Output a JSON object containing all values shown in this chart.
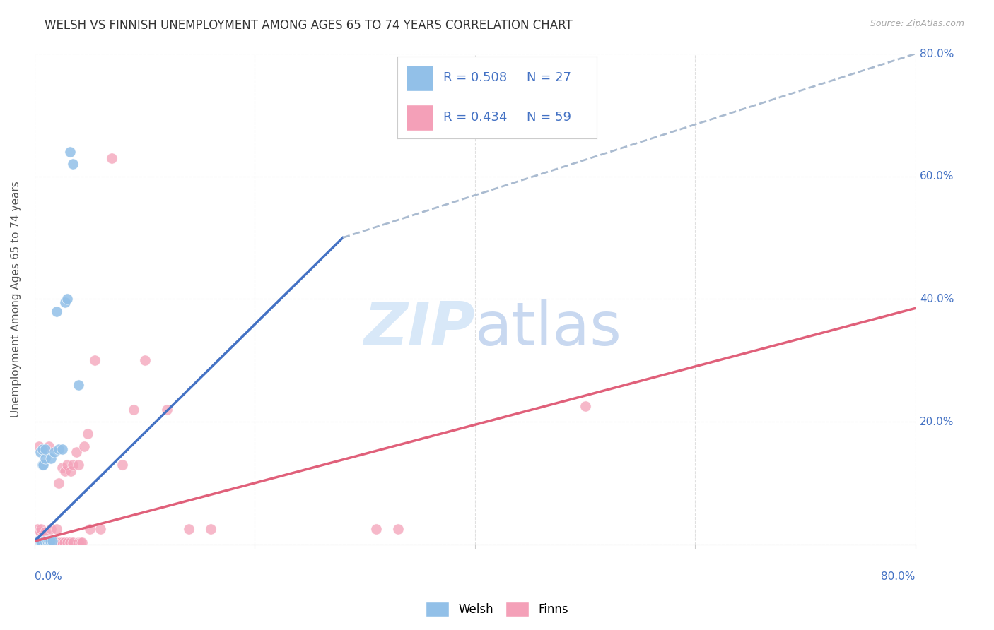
{
  "title": "WELSH VS FINNISH UNEMPLOYMENT AMONG AGES 65 TO 74 YEARS CORRELATION CHART",
  "source": "Source: ZipAtlas.com",
  "ylabel": "Unemployment Among Ages 65 to 74 years",
  "xlim": [
    0,
    0.8
  ],
  "ylim": [
    0,
    0.8
  ],
  "xticks": [
    0.0,
    0.2,
    0.4,
    0.6,
    0.8
  ],
  "yticks": [
    0.0,
    0.2,
    0.4,
    0.6,
    0.8
  ],
  "xticklabels_left": "0.0%",
  "xticklabels_right": "80.0%",
  "yticklabels": [
    "20.0%",
    "40.0%",
    "60.0%",
    "80.0%"
  ],
  "ytick_positions": [
    0.2,
    0.4,
    0.6,
    0.8
  ],
  "welsh_color": "#92C0E8",
  "finns_color": "#F4A0B8",
  "welsh_line_color": "#4472C4",
  "finns_line_color": "#E0607A",
  "dashed_line_color": "#AABBD0",
  "watermark_color": "#D8E8F8",
  "legend_text_color": "#4472C4",
  "welsh_R": 0.508,
  "welsh_N": 27,
  "finns_R": 0.434,
  "finns_N": 59,
  "welsh_scatter_x": [
    0.002,
    0.003,
    0.004,
    0.005,
    0.005,
    0.006,
    0.007,
    0.007,
    0.008,
    0.009,
    0.01,
    0.01,
    0.011,
    0.012,
    0.013,
    0.014,
    0.015,
    0.016,
    0.018,
    0.02,
    0.022,
    0.025,
    0.028,
    0.03,
    0.032,
    0.035,
    0.04
  ],
  "welsh_scatter_y": [
    0.003,
    0.005,
    0.005,
    0.004,
    0.15,
    0.004,
    0.13,
    0.155,
    0.13,
    0.005,
    0.14,
    0.155,
    0.005,
    0.005,
    0.005,
    0.005,
    0.14,
    0.005,
    0.15,
    0.38,
    0.155,
    0.155,
    0.395,
    0.4,
    0.64,
    0.62,
    0.26
  ],
  "finns_scatter_x": [
    0.001,
    0.002,
    0.003,
    0.003,
    0.004,
    0.004,
    0.005,
    0.005,
    0.005,
    0.006,
    0.006,
    0.007,
    0.007,
    0.008,
    0.008,
    0.009,
    0.01,
    0.01,
    0.011,
    0.012,
    0.013,
    0.015,
    0.015,
    0.016,
    0.018,
    0.02,
    0.02,
    0.022,
    0.023,
    0.025,
    0.025,
    0.027,
    0.028,
    0.03,
    0.03,
    0.032,
    0.033,
    0.035,
    0.035,
    0.038,
    0.04,
    0.04,
    0.042,
    0.043,
    0.045,
    0.048,
    0.05,
    0.055,
    0.06,
    0.07,
    0.08,
    0.09,
    0.1,
    0.12,
    0.14,
    0.16,
    0.31,
    0.33,
    0.5
  ],
  "finns_scatter_y": [
    0.003,
    0.003,
    0.003,
    0.025,
    0.003,
    0.16,
    0.003,
    0.01,
    0.02,
    0.003,
    0.025,
    0.003,
    0.01,
    0.003,
    0.015,
    0.003,
    0.003,
    0.02,
    0.003,
    0.003,
    0.16,
    0.003,
    0.025,
    0.003,
    0.003,
    0.003,
    0.025,
    0.1,
    0.003,
    0.003,
    0.125,
    0.003,
    0.12,
    0.003,
    0.13,
    0.003,
    0.12,
    0.003,
    0.13,
    0.15,
    0.003,
    0.13,
    0.003,
    0.003,
    0.16,
    0.18,
    0.025,
    0.3,
    0.025,
    0.63,
    0.13,
    0.22,
    0.3,
    0.22,
    0.025,
    0.025,
    0.025,
    0.025,
    0.225
  ],
  "welsh_line_x": [
    0.0,
    0.28
  ],
  "welsh_line_y": [
    0.005,
    0.5
  ],
  "dashed_line_x": [
    0.28,
    0.8
  ],
  "dashed_line_y": [
    0.5,
    0.8
  ],
  "finns_line_x": [
    0.0,
    0.8
  ],
  "finns_line_y": [
    0.005,
    0.385
  ],
  "background_color": "#FFFFFF",
  "grid_color": "#DDDDDD",
  "title_fontsize": 12,
  "axis_label_fontsize": 11,
  "tick_fontsize": 11,
  "legend_fontsize": 13
}
